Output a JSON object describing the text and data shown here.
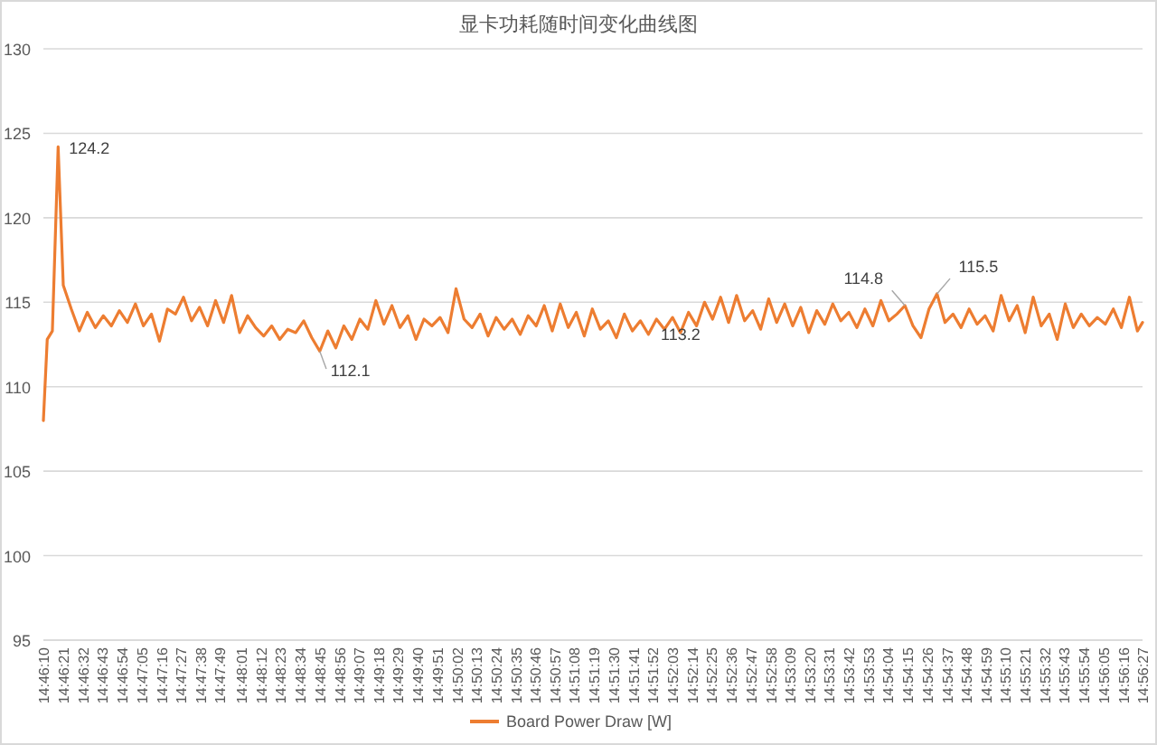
{
  "chart_data": {
    "type": "line",
    "title": "显卡功耗随时间变化曲线图",
    "x": [
      14.7694,
      14.77,
      14.7708,
      14.7717,
      14.7725,
      14.77375,
      14.775,
      14.77625,
      14.7775,
      14.77875,
      14.78,
      14.78125,
      14.7825,
      14.78375,
      14.785,
      14.78625,
      14.7875,
      14.78875,
      14.79,
      14.79125,
      14.7925,
      14.79375,
      14.795,
      14.79625,
      14.7975,
      14.79875,
      14.8,
      14.80125,
      14.8025,
      14.80375,
      14.805,
      14.80625,
      14.8075,
      14.80875,
      14.81,
      14.81125,
      14.8125,
      14.81375,
      14.815,
      14.81625,
      14.8175,
      14.81875,
      14.82,
      14.82125,
      14.8225,
      14.82375,
      14.825,
      14.82625,
      14.8275,
      14.82875,
      14.83,
      14.83125,
      14.8325,
      14.83375,
      14.835,
      14.83625,
      14.8375,
      14.83875,
      14.84,
      14.84125,
      14.8425,
      14.84375,
      14.845,
      14.84625,
      14.8475,
      14.84875,
      14.85,
      14.85125,
      14.8525,
      14.85375,
      14.855,
      14.85625,
      14.8575,
      14.85875,
      14.86,
      14.86125,
      14.8625,
      14.86375,
      14.865,
      14.86625,
      14.8675,
      14.86875,
      14.87,
      14.87125,
      14.8725,
      14.87375,
      14.875,
      14.87625,
      14.8775,
      14.87875,
      14.88,
      14.88125,
      14.8825,
      14.88375,
      14.885,
      14.88625,
      14.8875,
      14.88875,
      14.89,
      14.89125,
      14.8925,
      14.89375,
      14.895,
      14.89625,
      14.8975,
      14.89875,
      14.9,
      14.90125,
      14.9025,
      14.90375,
      14.905,
      14.90625,
      14.9075,
      14.90875,
      14.91,
      14.91125,
      14.9125,
      14.91375,
      14.915,
      14.91625,
      14.9175,
      14.91875,
      14.92,
      14.92125,
      14.9225,
      14.92375,
      14.925,
      14.92625,
      14.9275,
      14.92875,
      14.93,
      14.93125,
      14.9325,
      14.93375,
      14.935,
      14.93625,
      14.9375,
      14.93875,
      14.94,
      14.9408
    ],
    "series": [
      {
        "name": "Board Power Draw [W]",
        "color": "#ed7d31",
        "values": [
          108,
          112.8,
          113.3,
          124.2,
          116,
          114.6,
          113.3,
          114.4,
          113.5,
          114.2,
          113.6,
          114.5,
          113.8,
          114.9,
          113.6,
          114.3,
          112.7,
          114.6,
          114.3,
          115.3,
          113.9,
          114.7,
          113.6,
          115.1,
          113.8,
          115.4,
          113.2,
          114.2,
          113.5,
          113.0,
          113.6,
          112.8,
          113.4,
          113.2,
          113.9,
          112.9,
          112.1,
          113.3,
          112.3,
          113.6,
          112.8,
          114.0,
          113.4,
          115.1,
          113.7,
          114.8,
          113.5,
          114.2,
          112.8,
          114.0,
          113.6,
          114.1,
          113.2,
          115.8,
          114.0,
          113.5,
          114.3,
          113.0,
          114.1,
          113.4,
          114.0,
          113.1,
          114.2,
          113.6,
          114.8,
          113.3,
          114.9,
          113.5,
          114.4,
          113.0,
          114.6,
          113.4,
          113.9,
          112.9,
          114.3,
          113.3,
          113.9,
          113.1,
          114.0,
          113.4,
          114.1,
          113.2,
          114.4,
          113.6,
          115.0,
          114.0,
          115.3,
          113.8,
          115.4,
          113.9,
          114.5,
          113.4,
          115.2,
          113.8,
          114.9,
          113.6,
          114.7,
          113.2,
          114.5,
          113.7,
          114.9,
          113.9,
          114.4,
          113.5,
          114.6,
          113.6,
          115.1,
          113.9,
          114.3,
          114.8,
          113.6,
          112.9,
          114.6,
          115.5,
          113.8,
          114.3,
          113.5,
          114.6,
          113.7,
          114.2,
          113.3,
          115.4,
          113.9,
          114.8,
          113.2,
          115.3,
          113.6,
          114.3,
          112.8,
          114.9,
          113.5,
          114.3,
          113.6,
          114.1,
          113.7,
          114.6,
          113.5,
          115.3,
          113.3,
          113.8
        ]
      }
    ],
    "xlim": [
      14.7694,
      14.9408
    ],
    "xticks": [
      {
        "value": 14.7694,
        "label": "14:46:10"
      },
      {
        "value": 14.7725,
        "label": "14:46:21"
      },
      {
        "value": 14.7756,
        "label": "14:46:32"
      },
      {
        "value": 14.7786,
        "label": "14:46:43"
      },
      {
        "value": 14.7817,
        "label": "14:46:54"
      },
      {
        "value": 14.7847,
        "label": "14:47:05"
      },
      {
        "value": 14.7878,
        "label": "14:47:16"
      },
      {
        "value": 14.7908,
        "label": "14:47:27"
      },
      {
        "value": 14.7939,
        "label": "14:47:38"
      },
      {
        "value": 14.7969,
        "label": "14:47:49"
      },
      {
        "value": 14.8003,
        "label": "14:48:01"
      },
      {
        "value": 14.8033,
        "label": "14:48:12"
      },
      {
        "value": 14.8064,
        "label": "14:48:23"
      },
      {
        "value": 14.8094,
        "label": "14:48:34"
      },
      {
        "value": 14.8125,
        "label": "14:48:45"
      },
      {
        "value": 14.8156,
        "label": "14:48:56"
      },
      {
        "value": 14.8186,
        "label": "14:49:07"
      },
      {
        "value": 14.8217,
        "label": "14:49:18"
      },
      {
        "value": 14.8247,
        "label": "14:49:29"
      },
      {
        "value": 14.8278,
        "label": "14:49:40"
      },
      {
        "value": 14.8308,
        "label": "14:49:51"
      },
      {
        "value": 14.8339,
        "label": "14:50:02"
      },
      {
        "value": 14.8369,
        "label": "14:50:13"
      },
      {
        "value": 14.84,
        "label": "14:50:24"
      },
      {
        "value": 14.8431,
        "label": "14:50:35"
      },
      {
        "value": 14.8461,
        "label": "14:50:46"
      },
      {
        "value": 14.8492,
        "label": "14:50:57"
      },
      {
        "value": 14.8522,
        "label": "14:51:08"
      },
      {
        "value": 14.8553,
        "label": "14:51:19"
      },
      {
        "value": 14.8583,
        "label": "14:51:30"
      },
      {
        "value": 14.8614,
        "label": "14:51:41"
      },
      {
        "value": 14.8644,
        "label": "14:51:52"
      },
      {
        "value": 14.8675,
        "label": "14:52:03"
      },
      {
        "value": 14.8706,
        "label": "14:52:14"
      },
      {
        "value": 14.8736,
        "label": "14:52:25"
      },
      {
        "value": 14.8767,
        "label": "14:52:36"
      },
      {
        "value": 14.8797,
        "label": "14:52:47"
      },
      {
        "value": 14.8828,
        "label": "14:52:58"
      },
      {
        "value": 14.8858,
        "label": "14:53:09"
      },
      {
        "value": 14.8889,
        "label": "14:53:20"
      },
      {
        "value": 14.8919,
        "label": "14:53:31"
      },
      {
        "value": 14.895,
        "label": "14:53:42"
      },
      {
        "value": 14.8981,
        "label": "14:53:53"
      },
      {
        "value": 14.9011,
        "label": "14:54:04"
      },
      {
        "value": 14.9042,
        "label": "14:54:15"
      },
      {
        "value": 14.9072,
        "label": "14:54:26"
      },
      {
        "value": 14.9103,
        "label": "14:54:37"
      },
      {
        "value": 14.9133,
        "label": "14:54:48"
      },
      {
        "value": 14.9164,
        "label": "14:54:59"
      },
      {
        "value": 14.9194,
        "label": "14:55:10"
      },
      {
        "value": 14.9225,
        "label": "14:55:21"
      },
      {
        "value": 14.9256,
        "label": "14:55:32"
      },
      {
        "value": 14.9286,
        "label": "14:55:43"
      },
      {
        "value": 14.9317,
        "label": "14:55:54"
      },
      {
        "value": 14.9347,
        "label": "14:56:05"
      },
      {
        "value": 14.9378,
        "label": "14:56:16"
      },
      {
        "value": 14.9408,
        "label": "14:56:27"
      }
    ],
    "ylim": [
      95,
      130
    ],
    "yticks": [
      95,
      100,
      105,
      110,
      115,
      120,
      125,
      130
    ],
    "grid": "y",
    "legend": "bottom",
    "annotations": [
      {
        "text": "124.2",
        "x": 14.7717,
        "y": 124.2
      },
      {
        "text": "112.1",
        "x": 14.8125,
        "y": 112.1
      },
      {
        "text": "113.2",
        "x": 14.86875,
        "y": 113.2
      },
      {
        "text": "114.8",
        "x": 14.90375,
        "y": 114.8
      },
      {
        "text": "115.5",
        "x": 14.90875,
        "y": 115.5
      }
    ]
  }
}
